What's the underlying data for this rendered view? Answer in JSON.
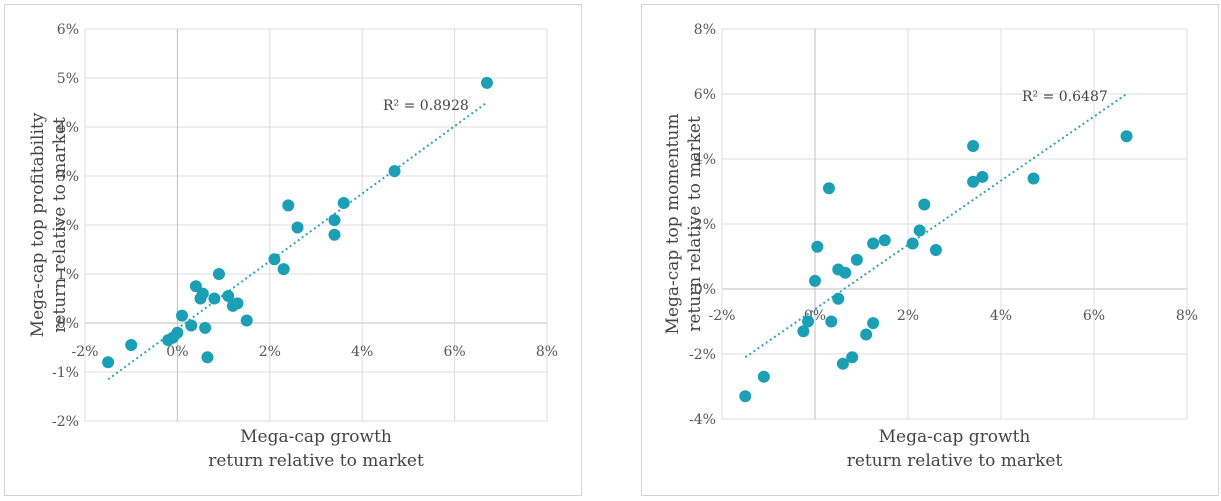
{
  "chart_data": [
    {
      "type": "scatter",
      "xlabel_line1": "Mega-cap growth",
      "xlabel_line2": "return relative to market",
      "ylabel_line1": "Mega-cap top profitability",
      "ylabel_line2": "return relative to market",
      "r2_label": "R² = 0.8928",
      "xlim": [
        -2,
        8
      ],
      "ylim": [
        -2,
        6
      ],
      "x_ticks": [
        -2,
        0,
        2,
        4,
        6,
        8
      ],
      "x_tick_labels": [
        "-2%",
        "0%",
        "2%",
        "4%",
        "6%",
        "8%"
      ],
      "y_ticks": [
        -2,
        -1,
        0,
        1,
        2,
        3,
        4,
        5,
        6
      ],
      "y_tick_labels": [
        "-2%",
        "-1%",
        "0%",
        "1%",
        "2%",
        "3%",
        "4%",
        "5%",
        "6%"
      ],
      "grid": true,
      "trendline": {
        "style": "dotted",
        "from": [
          -1.5,
          -1.15
        ],
        "to": [
          6.7,
          4.5
        ]
      },
      "points": [
        [
          -1.5,
          -0.8
        ],
        [
          -1.0,
          -0.45
        ],
        [
          -0.2,
          -0.35
        ],
        [
          -0.1,
          -0.3
        ],
        [
          0.0,
          -0.2
        ],
        [
          0.1,
          0.15
        ],
        [
          0.3,
          -0.05
        ],
        [
          0.4,
          0.75
        ],
        [
          0.5,
          0.5
        ],
        [
          0.55,
          0.6
        ],
        [
          0.6,
          -0.1
        ],
        [
          0.65,
          -0.7
        ],
        [
          0.8,
          0.5
        ],
        [
          0.9,
          1.0
        ],
        [
          1.1,
          0.55
        ],
        [
          1.2,
          0.35
        ],
        [
          1.3,
          0.4
        ],
        [
          1.5,
          0.05
        ],
        [
          2.1,
          1.3
        ],
        [
          2.3,
          1.1
        ],
        [
          2.4,
          2.4
        ],
        [
          2.6,
          1.95
        ],
        [
          3.4,
          2.1
        ],
        [
          3.4,
          1.8
        ],
        [
          3.6,
          2.45
        ],
        [
          4.7,
          3.1
        ],
        [
          6.7,
          4.9
        ]
      ]
    },
    {
      "type": "scatter",
      "xlabel_line1": "Mega-cap growth",
      "xlabel_line2": "return relative to market",
      "ylabel_line1": "Mega-cap top momentum",
      "ylabel_line2": "return relative to market",
      "r2_label": "R² = 0.6487",
      "xlim": [
        -2,
        8
      ],
      "ylim": [
        -4,
        8
      ],
      "x_ticks": [
        -2,
        0,
        2,
        4,
        6,
        8
      ],
      "x_tick_labels": [
        "-2%",
        "0%",
        "2%",
        "4%",
        "6%",
        "8%"
      ],
      "y_ticks": [
        -4,
        -2,
        0,
        2,
        4,
        6,
        8
      ],
      "y_tick_labels": [
        "-4%",
        "-2%",
        "0%",
        "2%",
        "4%",
        "6%",
        "8%"
      ],
      "grid": true,
      "trendline": {
        "style": "dotted",
        "from": [
          -1.5,
          -2.1
        ],
        "to": [
          6.7,
          6.0
        ]
      },
      "points": [
        [
          -1.5,
          -3.3
        ],
        [
          -1.1,
          -2.7
        ],
        [
          -0.25,
          -1.3
        ],
        [
          -0.15,
          -1.0
        ],
        [
          0.0,
          0.25
        ],
        [
          0.05,
          1.3
        ],
        [
          0.3,
          3.1
        ],
        [
          0.35,
          -1.0
        ],
        [
          0.5,
          -0.3
        ],
        [
          0.5,
          0.6
        ],
        [
          0.6,
          -2.3
        ],
        [
          0.65,
          0.5
        ],
        [
          0.8,
          -2.1
        ],
        [
          0.9,
          0.9
        ],
        [
          1.1,
          -1.4
        ],
        [
          1.25,
          -1.05
        ],
        [
          1.25,
          1.4
        ],
        [
          1.5,
          1.5
        ],
        [
          2.1,
          1.4
        ],
        [
          2.25,
          1.8
        ],
        [
          2.35,
          2.6
        ],
        [
          2.6,
          1.2
        ],
        [
          3.4,
          4.4
        ],
        [
          3.4,
          3.3
        ],
        [
          3.6,
          3.45
        ],
        [
          4.7,
          3.4
        ],
        [
          6.7,
          4.7
        ]
      ]
    }
  ]
}
